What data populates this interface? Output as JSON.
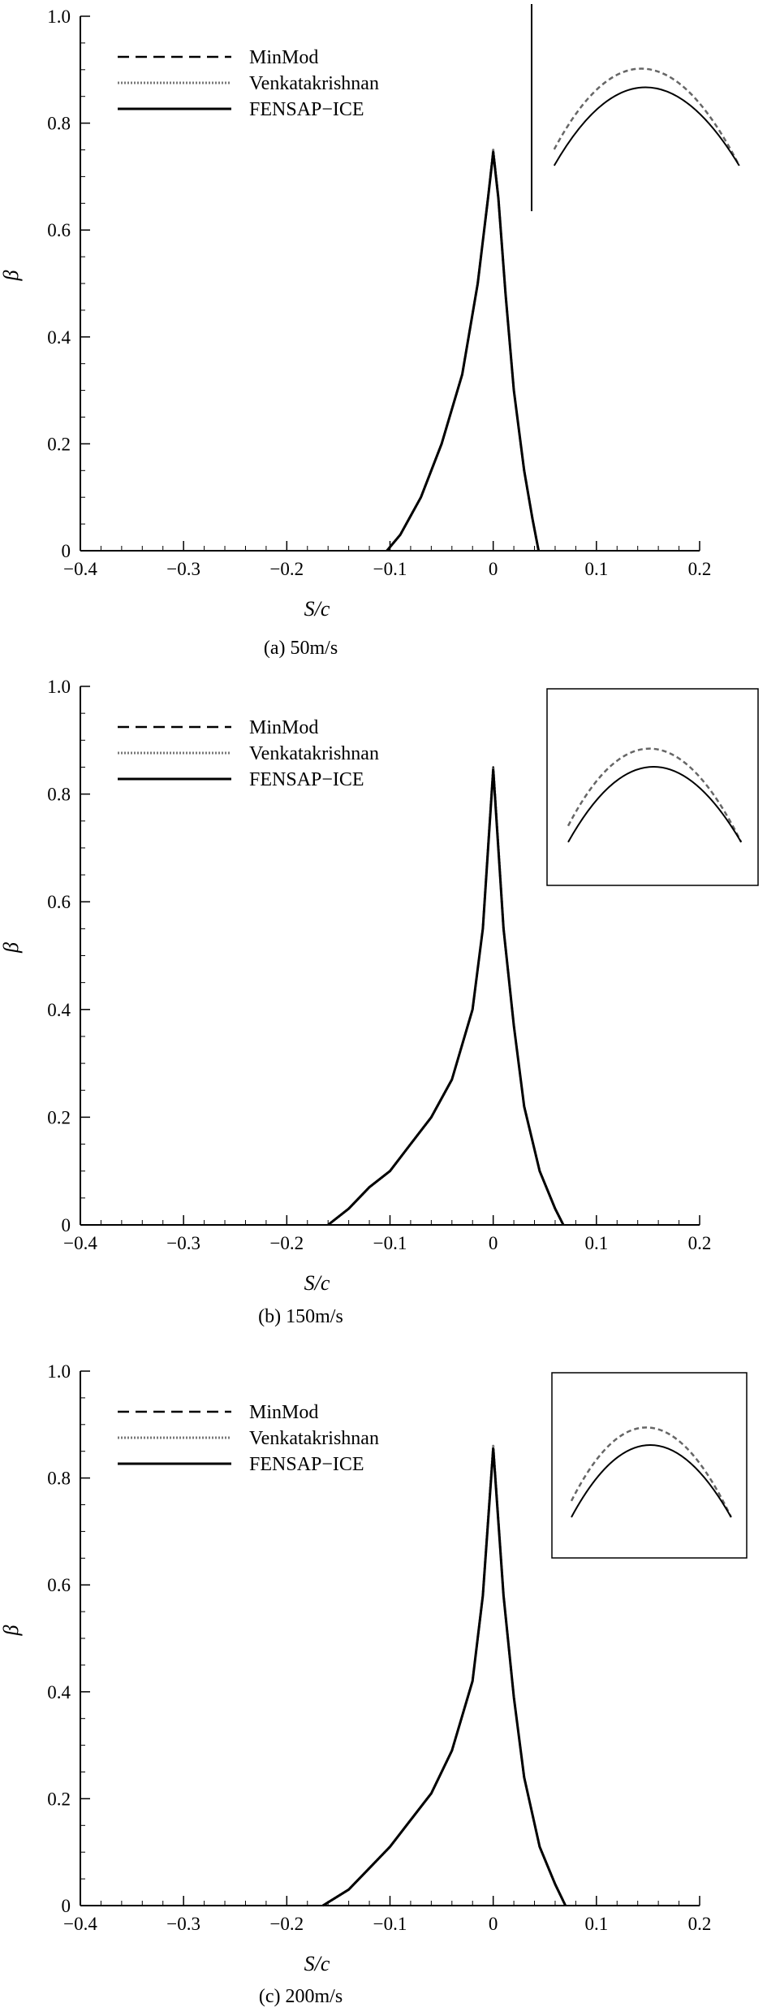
{
  "chart_data": [
    {
      "type": "line",
      "caption": "(a) 50m/s",
      "xlabel": "S/c",
      "ylabel": "β",
      "xlim": [
        -0.4,
        0.2
      ],
      "ylim": [
        0,
        1.0
      ],
      "xticks": [
        -0.4,
        -0.3,
        -0.2,
        -0.1,
        0,
        0.1,
        0.2
      ],
      "xtick_labels": [
        "−0.4",
        "−0.3",
        "−0.2",
        "−0.1",
        "0",
        "0.1",
        "0.2"
      ],
      "yticks": [
        0,
        0.2,
        0.4,
        0.6,
        0.8,
        1.0
      ],
      "ytick_labels": [
        "0",
        "0.2",
        "0.4",
        "0.6",
        "0.8",
        "1.0"
      ],
      "legend_position": "top-left",
      "inset": "top-right",
      "series": [
        {
          "name": "MinMod",
          "style": "dashed",
          "x": [
            -0.103,
            -0.09,
            -0.07,
            -0.05,
            -0.03,
            -0.015,
            -0.005,
            0,
            0.005,
            0.012,
            0.02,
            0.03,
            0.038,
            0.044
          ],
          "y": [
            0,
            0.03,
            0.1,
            0.2,
            0.33,
            0.5,
            0.66,
            0.75,
            0.66,
            0.48,
            0.3,
            0.15,
            0.06,
            0
          ]
        },
        {
          "name": "Venkatakrishnan",
          "style": "dotted",
          "x": [
            -0.103,
            -0.09,
            -0.07,
            -0.05,
            -0.03,
            -0.015,
            -0.005,
            0,
            0.005,
            0.012,
            0.02,
            0.03,
            0.038,
            0.044
          ],
          "y": [
            0,
            0.03,
            0.1,
            0.2,
            0.33,
            0.5,
            0.66,
            0.75,
            0.66,
            0.48,
            0.3,
            0.15,
            0.06,
            0
          ]
        },
        {
          "name": "FENSAP−ICE",
          "style": "solid",
          "x": [
            -0.103,
            -0.09,
            -0.07,
            -0.05,
            -0.03,
            -0.015,
            -0.005,
            0,
            0.005,
            0.012,
            0.02,
            0.03,
            0.038,
            0.044
          ],
          "y": [
            0,
            0.03,
            0.1,
            0.2,
            0.33,
            0.5,
            0.66,
            0.745,
            0.66,
            0.48,
            0.3,
            0.15,
            0.06,
            0
          ]
        }
      ]
    },
    {
      "type": "line",
      "caption": "(b) 150m/s",
      "xlabel": "S/c",
      "ylabel": "β",
      "xlim": [
        -0.4,
        0.2
      ],
      "ylim": [
        0,
        1.0
      ],
      "xticks": [
        -0.4,
        -0.3,
        -0.2,
        -0.1,
        0,
        0.1,
        0.2
      ],
      "xtick_labels": [
        "−0.4",
        "−0.3",
        "−0.2",
        "−0.1",
        "0",
        "0.1",
        "0.2"
      ],
      "yticks": [
        0,
        0.2,
        0.4,
        0.6,
        0.8,
        1.0
      ],
      "ytick_labels": [
        "0",
        "0.2",
        "0.4",
        "0.6",
        "0.8",
        "1.0"
      ],
      "legend_position": "top-left",
      "inset": "top-right",
      "series": [
        {
          "name": "MinMod",
          "style": "dashed",
          "x": [
            -0.16,
            -0.14,
            -0.12,
            -0.1,
            -0.08,
            -0.06,
            -0.04,
            -0.02,
            -0.01,
            0,
            0.01,
            0.02,
            0.03,
            0.045,
            0.06,
            0.068
          ],
          "y": [
            0,
            0.03,
            0.07,
            0.1,
            0.15,
            0.2,
            0.27,
            0.4,
            0.55,
            0.85,
            0.55,
            0.37,
            0.22,
            0.1,
            0.03,
            0
          ]
        },
        {
          "name": "Venkatakrishnan",
          "style": "dotted",
          "x": [
            -0.16,
            -0.14,
            -0.12,
            -0.1,
            -0.08,
            -0.06,
            -0.04,
            -0.02,
            -0.01,
            0,
            0.01,
            0.02,
            0.03,
            0.045,
            0.06,
            0.068
          ],
          "y": [
            0,
            0.03,
            0.07,
            0.1,
            0.15,
            0.2,
            0.27,
            0.4,
            0.55,
            0.85,
            0.55,
            0.37,
            0.22,
            0.1,
            0.03,
            0
          ]
        },
        {
          "name": "FENSAP−ICE",
          "style": "solid",
          "x": [
            -0.16,
            -0.14,
            -0.12,
            -0.1,
            -0.08,
            -0.06,
            -0.04,
            -0.02,
            -0.01,
            0,
            0.01,
            0.02,
            0.03,
            0.045,
            0.06,
            0.068
          ],
          "y": [
            0,
            0.03,
            0.07,
            0.1,
            0.15,
            0.2,
            0.27,
            0.4,
            0.55,
            0.845,
            0.55,
            0.37,
            0.22,
            0.1,
            0.03,
            0
          ]
        }
      ]
    },
    {
      "type": "line",
      "caption": "(c) 200m/s",
      "xlabel": "S/c",
      "ylabel": "β",
      "xlim": [
        -0.4,
        0.2
      ],
      "ylim": [
        0,
        1.0
      ],
      "xticks": [
        -0.4,
        -0.3,
        -0.2,
        -0.1,
        0,
        0.1,
        0.2
      ],
      "xtick_labels": [
        "−0.4",
        "−0.3",
        "−0.2",
        "−0.1",
        "0",
        "0.1",
        "0.2"
      ],
      "yticks": [
        0,
        0.2,
        0.4,
        0.6,
        0.8,
        1.0
      ],
      "ytick_labels": [
        "0",
        "0.2",
        "0.4",
        "0.6",
        "0.8",
        "1.0"
      ],
      "legend_position": "top-left",
      "inset": "top-right",
      "series": [
        {
          "name": "MinMod",
          "style": "dashed",
          "x": [
            -0.165,
            -0.14,
            -0.12,
            -0.1,
            -0.08,
            -0.06,
            -0.04,
            -0.02,
            -0.01,
            0,
            0.01,
            0.02,
            0.03,
            0.045,
            0.06,
            0.07
          ],
          "y": [
            0,
            0.03,
            0.07,
            0.11,
            0.16,
            0.21,
            0.29,
            0.42,
            0.58,
            0.86,
            0.58,
            0.39,
            0.24,
            0.11,
            0.04,
            0
          ]
        },
        {
          "name": "Venkatakrishnan",
          "style": "dotted",
          "x": [
            -0.165,
            -0.14,
            -0.12,
            -0.1,
            -0.08,
            -0.06,
            -0.04,
            -0.02,
            -0.01,
            0,
            0.01,
            0.02,
            0.03,
            0.045,
            0.06,
            0.07
          ],
          "y": [
            0,
            0.03,
            0.07,
            0.11,
            0.16,
            0.21,
            0.29,
            0.42,
            0.58,
            0.86,
            0.58,
            0.39,
            0.24,
            0.11,
            0.04,
            0
          ]
        },
        {
          "name": "FENSAP−ICE",
          "style": "solid",
          "x": [
            -0.165,
            -0.14,
            -0.12,
            -0.1,
            -0.08,
            -0.06,
            -0.04,
            -0.02,
            -0.01,
            0,
            0.01,
            0.02,
            0.03,
            0.045,
            0.06,
            0.07
          ],
          "y": [
            0,
            0.03,
            0.07,
            0.11,
            0.16,
            0.21,
            0.29,
            0.42,
            0.58,
            0.855,
            0.58,
            0.39,
            0.24,
            0.11,
            0.04,
            0
          ]
        }
      ]
    }
  ]
}
